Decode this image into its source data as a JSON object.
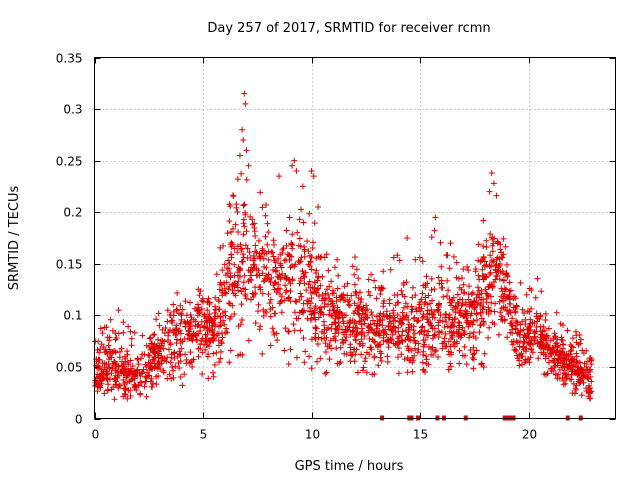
{
  "chart_data": {
    "type": "scatter",
    "title": "Day 257 of 2017, SRMTID for receiver rcmn",
    "xlabel": "GPS time / hours",
    "ylabel": "SRMTID / TECUs",
    "xlim": [
      0,
      24
    ],
    "ylim": [
      0,
      0.35
    ],
    "x_ticks": [
      0,
      5,
      10,
      15,
      20
    ],
    "x_tick_labels": [
      "0",
      "5",
      "10",
      "15",
      "20"
    ],
    "y_ticks": [
      0,
      0.05,
      0.1,
      0.15,
      0.2,
      0.25,
      0.3,
      0.35
    ],
    "y_tick_labels": [
      "0",
      "0.05",
      "0.1",
      "0.15",
      "0.2",
      "0.25",
      "0.3",
      "0.35"
    ],
    "grid": true,
    "marker": "+",
    "color": "#e00000",
    "series": [
      {
        "name": "SRMTID",
        "envelope": [
          [
            0.0,
            0.045,
            0.018,
            0.085
          ],
          [
            0.5,
            0.048,
            0.025,
            0.09
          ],
          [
            1.0,
            0.05,
            0.02,
            0.11
          ],
          [
            1.5,
            0.042,
            0.018,
            0.09
          ],
          [
            2.0,
            0.045,
            0.02,
            0.085
          ],
          [
            2.5,
            0.05,
            0.02,
            0.075
          ],
          [
            3.0,
            0.065,
            0.03,
            0.11
          ],
          [
            3.5,
            0.075,
            0.035,
            0.125
          ],
          [
            4.0,
            0.08,
            0.03,
            0.12
          ],
          [
            4.5,
            0.085,
            0.04,
            0.135
          ],
          [
            5.0,
            0.085,
            0.035,
            0.125
          ],
          [
            5.5,
            0.09,
            0.04,
            0.12
          ],
          [
            6.0,
            0.11,
            0.05,
            0.2
          ],
          [
            6.5,
            0.15,
            0.06,
            0.23
          ],
          [
            7.0,
            0.16,
            0.05,
            0.25
          ],
          [
            7.5,
            0.14,
            0.06,
            0.23
          ],
          [
            8.0,
            0.13,
            0.06,
            0.21
          ],
          [
            8.5,
            0.13,
            0.05,
            0.2
          ],
          [
            9.0,
            0.14,
            0.05,
            0.22
          ],
          [
            9.5,
            0.13,
            0.05,
            0.22
          ],
          [
            10.0,
            0.12,
            0.04,
            0.2
          ],
          [
            10.5,
            0.1,
            0.04,
            0.17
          ],
          [
            11.0,
            0.1,
            0.045,
            0.16
          ],
          [
            11.5,
            0.09,
            0.045,
            0.15
          ],
          [
            12.0,
            0.09,
            0.045,
            0.16
          ],
          [
            12.5,
            0.09,
            0.04,
            0.15
          ],
          [
            13.0,
            0.085,
            0.04,
            0.14
          ],
          [
            13.5,
            0.09,
            0.045,
            0.15
          ],
          [
            14.0,
            0.09,
            0.04,
            0.17
          ],
          [
            14.5,
            0.085,
            0.04,
            0.15
          ],
          [
            15.0,
            0.09,
            0.04,
            0.16
          ],
          [
            15.5,
            0.1,
            0.045,
            0.19
          ],
          [
            16.0,
            0.1,
            0.045,
            0.17
          ],
          [
            16.5,
            0.09,
            0.045,
            0.16
          ],
          [
            17.0,
            0.095,
            0.05,
            0.15
          ],
          [
            17.5,
            0.1,
            0.045,
            0.16
          ],
          [
            18.0,
            0.13,
            0.05,
            0.2
          ],
          [
            18.5,
            0.15,
            0.07,
            0.22
          ],
          [
            19.0,
            0.12,
            0.07,
            0.16
          ],
          [
            19.5,
            0.08,
            0.05,
            0.14
          ],
          [
            20.0,
            0.08,
            0.045,
            0.14
          ],
          [
            20.5,
            0.085,
            0.045,
            0.15
          ],
          [
            21.0,
            0.065,
            0.04,
            0.11
          ],
          [
            21.5,
            0.06,
            0.035,
            0.1
          ],
          [
            22.0,
            0.05,
            0.025,
            0.095
          ],
          [
            22.5,
            0.04,
            0.02,
            0.075
          ],
          [
            22.9,
            0.03,
            0.02,
            0.06
          ]
        ],
        "peaks": [
          [
            6.9,
            0.315
          ],
          [
            6.95,
            0.305
          ],
          [
            6.8,
            0.28
          ],
          [
            6.85,
            0.27
          ],
          [
            7.0,
            0.26
          ],
          [
            6.7,
            0.255
          ],
          [
            7.1,
            0.245
          ],
          [
            9.2,
            0.25
          ],
          [
            9.1,
            0.245
          ],
          [
            9.3,
            0.24
          ],
          [
            8.5,
            0.235
          ],
          [
            10.0,
            0.24
          ],
          [
            10.1,
            0.235
          ],
          [
            9.6,
            0.225
          ],
          [
            10.3,
            0.205
          ],
          [
            18.3,
            0.238
          ],
          [
            18.4,
            0.228
          ],
          [
            18.2,
            0.22
          ],
          [
            15.7,
            0.195
          ],
          [
            14.4,
            0.175
          ],
          [
            16.4,
            0.17
          ]
        ]
      }
    ],
    "gap_markers_x": [
      13.25,
      14.5,
      14.6,
      14.9,
      15.8,
      16.1,
      17.1,
      18.9,
      19.0,
      19.1,
      19.2,
      19.3,
      21.8,
      22.4
    ]
  }
}
